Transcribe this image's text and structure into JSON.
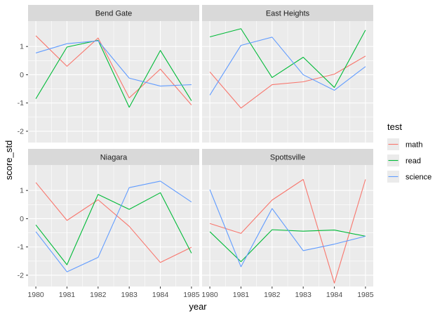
{
  "chart_data": {
    "type": "line",
    "xlabel": "year",
    "ylabel": "score_std",
    "x": [
      1980,
      1981,
      1982,
      1983,
      1984,
      1985
    ],
    "x_ticks": [
      1980,
      1981,
      1982,
      1983,
      1984,
      1985
    ],
    "y_ticks": [
      -2,
      -1,
      0,
      1
    ],
    "ylim": [
      -2.4,
      1.9
    ],
    "facet_layout": "2x2 grid, shared axes",
    "grid": true,
    "legend": {
      "title": "test",
      "position": "right",
      "entries": [
        "math",
        "read",
        "science"
      ]
    },
    "series_colors": {
      "math": "#F8766D",
      "read": "#00BA38",
      "science": "#619CFF"
    },
    "panels": [
      {
        "title": "Bend Gate",
        "series": [
          {
            "name": "math",
            "values": [
              1.38,
              0.3,
              1.3,
              -0.82,
              0.2,
              -1.07
            ]
          },
          {
            "name": "read",
            "values": [
              -0.85,
              0.98,
              1.22,
              -1.15,
              0.86,
              -0.92
            ]
          },
          {
            "name": "science",
            "values": [
              0.77,
              1.1,
              1.2,
              -0.12,
              -0.4,
              -0.35
            ]
          }
        ]
      },
      {
        "title": "East Heights",
        "series": [
          {
            "name": "math",
            "values": [
              0.1,
              -1.18,
              -0.35,
              -0.25,
              0.02,
              0.66
            ]
          },
          {
            "name": "read",
            "values": [
              1.34,
              1.63,
              -0.1,
              0.62,
              -0.45,
              1.58
            ]
          },
          {
            "name": "science",
            "values": [
              -0.72,
              1.04,
              1.33,
              0.0,
              -0.55,
              0.29
            ]
          }
        ]
      },
      {
        "title": "Niagara",
        "series": [
          {
            "name": "math",
            "values": [
              1.28,
              -0.06,
              0.67,
              -0.27,
              -1.55,
              -1.01
            ]
          },
          {
            "name": "read",
            "values": [
              -0.22,
              -1.63,
              0.86,
              0.33,
              0.92,
              -1.22
            ]
          },
          {
            "name": "science",
            "values": [
              -0.46,
              -1.88,
              -1.37,
              1.1,
              1.33,
              0.59
            ]
          }
        ]
      },
      {
        "title": "Spottsville",
        "series": [
          {
            "name": "math",
            "values": [
              -0.17,
              -0.52,
              0.66,
              1.39,
              -2.28,
              1.39
            ]
          },
          {
            "name": "read",
            "values": [
              -0.46,
              -1.52,
              -0.39,
              -0.44,
              -0.4,
              -0.62
            ]
          },
          {
            "name": "science",
            "values": [
              1.03,
              -1.7,
              0.36,
              -1.13,
              -0.9,
              -0.62
            ]
          }
        ]
      }
    ]
  }
}
